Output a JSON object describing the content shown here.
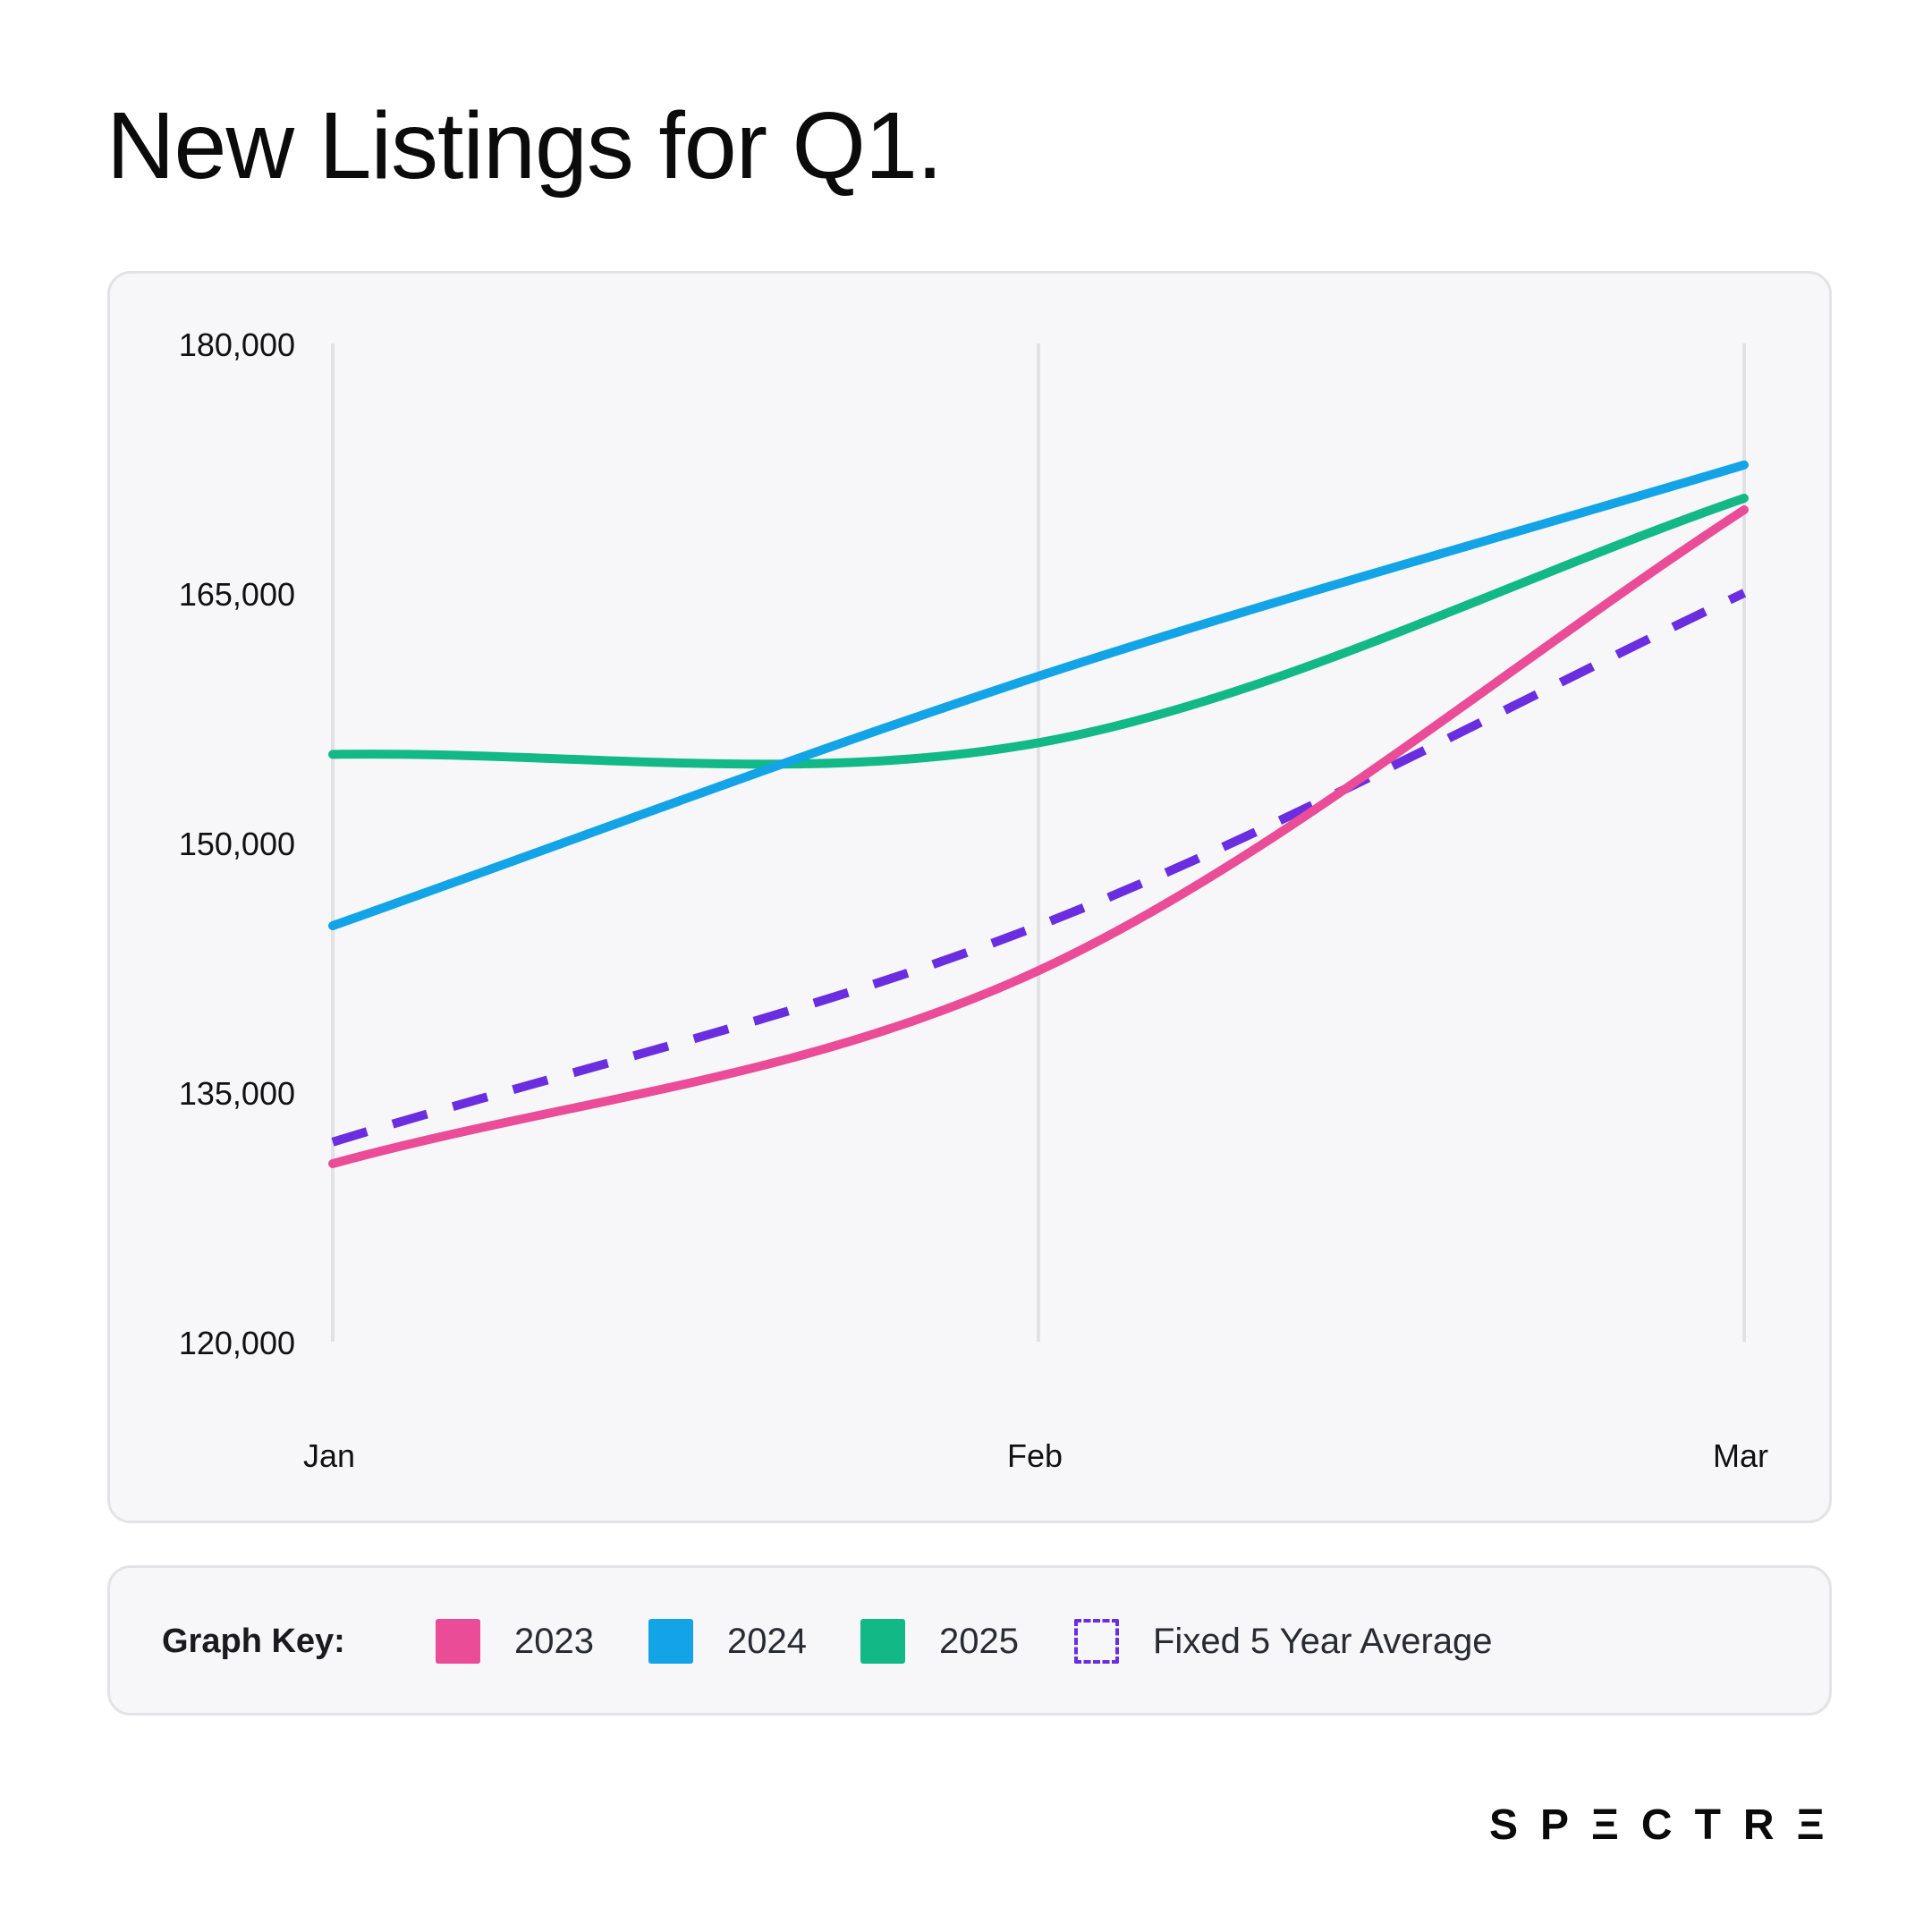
{
  "title": "New Listings for Q1.",
  "colors": {
    "series_2023": "#ea4c97",
    "series_2024": "#12a4e6",
    "series_2025": "#12b886",
    "series_avg": "#6a2de0",
    "grid": "#e2e2e6",
    "panel_bg": "#f7f7f9"
  },
  "legend": {
    "title": "Graph Key:",
    "items": [
      {
        "label": "2023",
        "color": "#ea4c97",
        "style": "solid"
      },
      {
        "label": "2024",
        "color": "#12a4e6",
        "style": "solid"
      },
      {
        "label": "2025",
        "color": "#12b886",
        "style": "solid"
      },
      {
        "label": "Fixed 5 Year Average",
        "color": "#6a2de0",
        "style": "dashed"
      }
    ]
  },
  "brand": "SPΞCTRΞ",
  "chart_data": {
    "type": "line",
    "categories": [
      "Jan",
      "Feb",
      "Mar"
    ],
    "ylim": [
      120000,
      180000
    ],
    "yticks": [
      "120,000",
      "135,000",
      "150,000",
      "165,000",
      "180,000"
    ],
    "ytick_values": [
      120000,
      135000,
      150000,
      165000,
      180000
    ],
    "grid": "vertical",
    "series": [
      {
        "name": "2023",
        "values": [
          130700,
          142300,
          170000
        ],
        "color": "#ea4c97",
        "dashed": false
      },
      {
        "name": "2024",
        "values": [
          145000,
          160000,
          172700
        ],
        "color": "#12a4e6",
        "dashed": false
      },
      {
        "name": "2025",
        "values": [
          155300,
          156000,
          170700
        ],
        "color": "#12b886",
        "dashed": false
      },
      {
        "name": "Fixed 5 Year Average",
        "values": [
          132000,
          145000,
          165000
        ],
        "color": "#6a2de0",
        "dashed": true
      }
    ]
  }
}
